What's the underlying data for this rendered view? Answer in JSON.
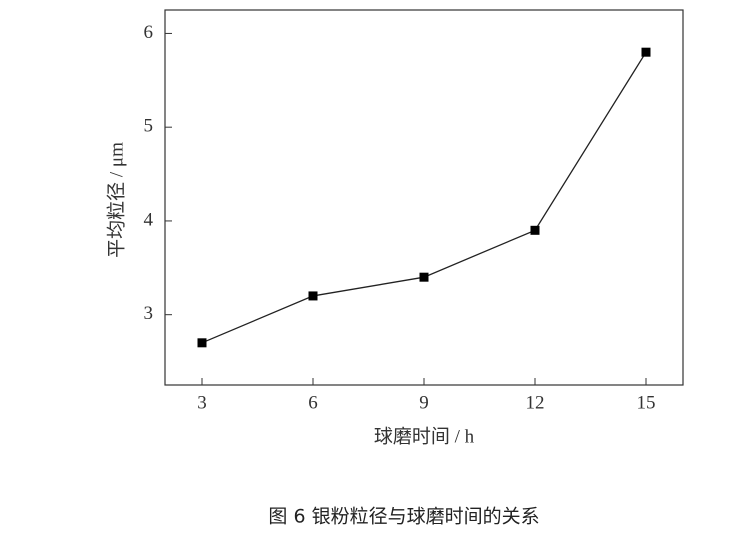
{
  "chart_data": {
    "type": "line",
    "x": [
      3,
      6,
      9,
      12,
      15
    ],
    "series": [
      {
        "name": "平均粒径",
        "color": "#222222",
        "values": [
          2.7,
          3.2,
          3.4,
          3.9,
          5.8
        ]
      }
    ],
    "xlim": [
      2,
      16
    ],
    "xticks": [
      3,
      6,
      9,
      12,
      15
    ],
    "ylim": [
      2.25,
      6.25
    ],
    "yticks": [
      3,
      4,
      5,
      6
    ],
    "x_label": "球磨时间 / h",
    "y_label": "平均粒径 / μm",
    "caption": "图 6  银粉粒径与球磨时间的关系"
  }
}
